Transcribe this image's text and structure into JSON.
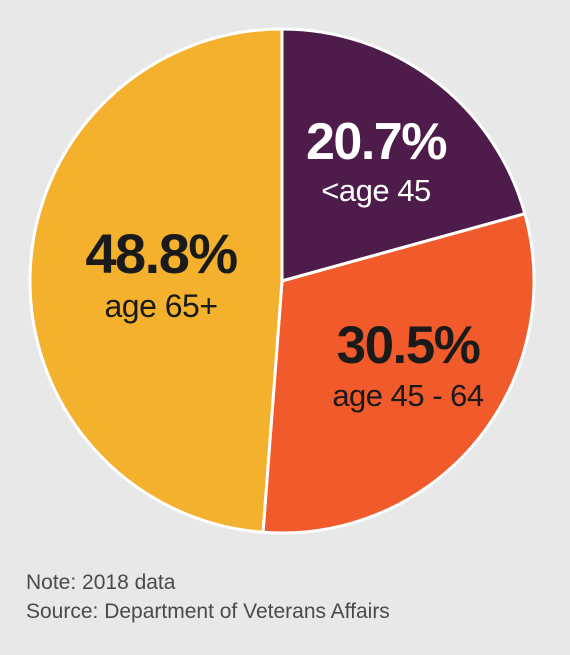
{
  "chart_data": {
    "type": "pie",
    "slices": [
      {
        "label": "<age 45",
        "value": 20.7,
        "display": "20.7%",
        "color": "#4d1c4a",
        "text_color": "#ffffff"
      },
      {
        "label": "age 45 - 64",
        "value": 30.5,
        "display": "30.5%",
        "color": "#f15a2b",
        "text_color": "#1a1a1a"
      },
      {
        "label": "age 65+",
        "value": 48.8,
        "display": "48.8%",
        "color": "#f3b12e",
        "text_color": "#1a1a1a"
      }
    ]
  },
  "footer": {
    "note": "Note:  2018 data",
    "source": "Source:  Department of Veterans Affairs"
  },
  "colors": {
    "background": "#e8e8e8",
    "footer_text": "#4a4a4a"
  }
}
